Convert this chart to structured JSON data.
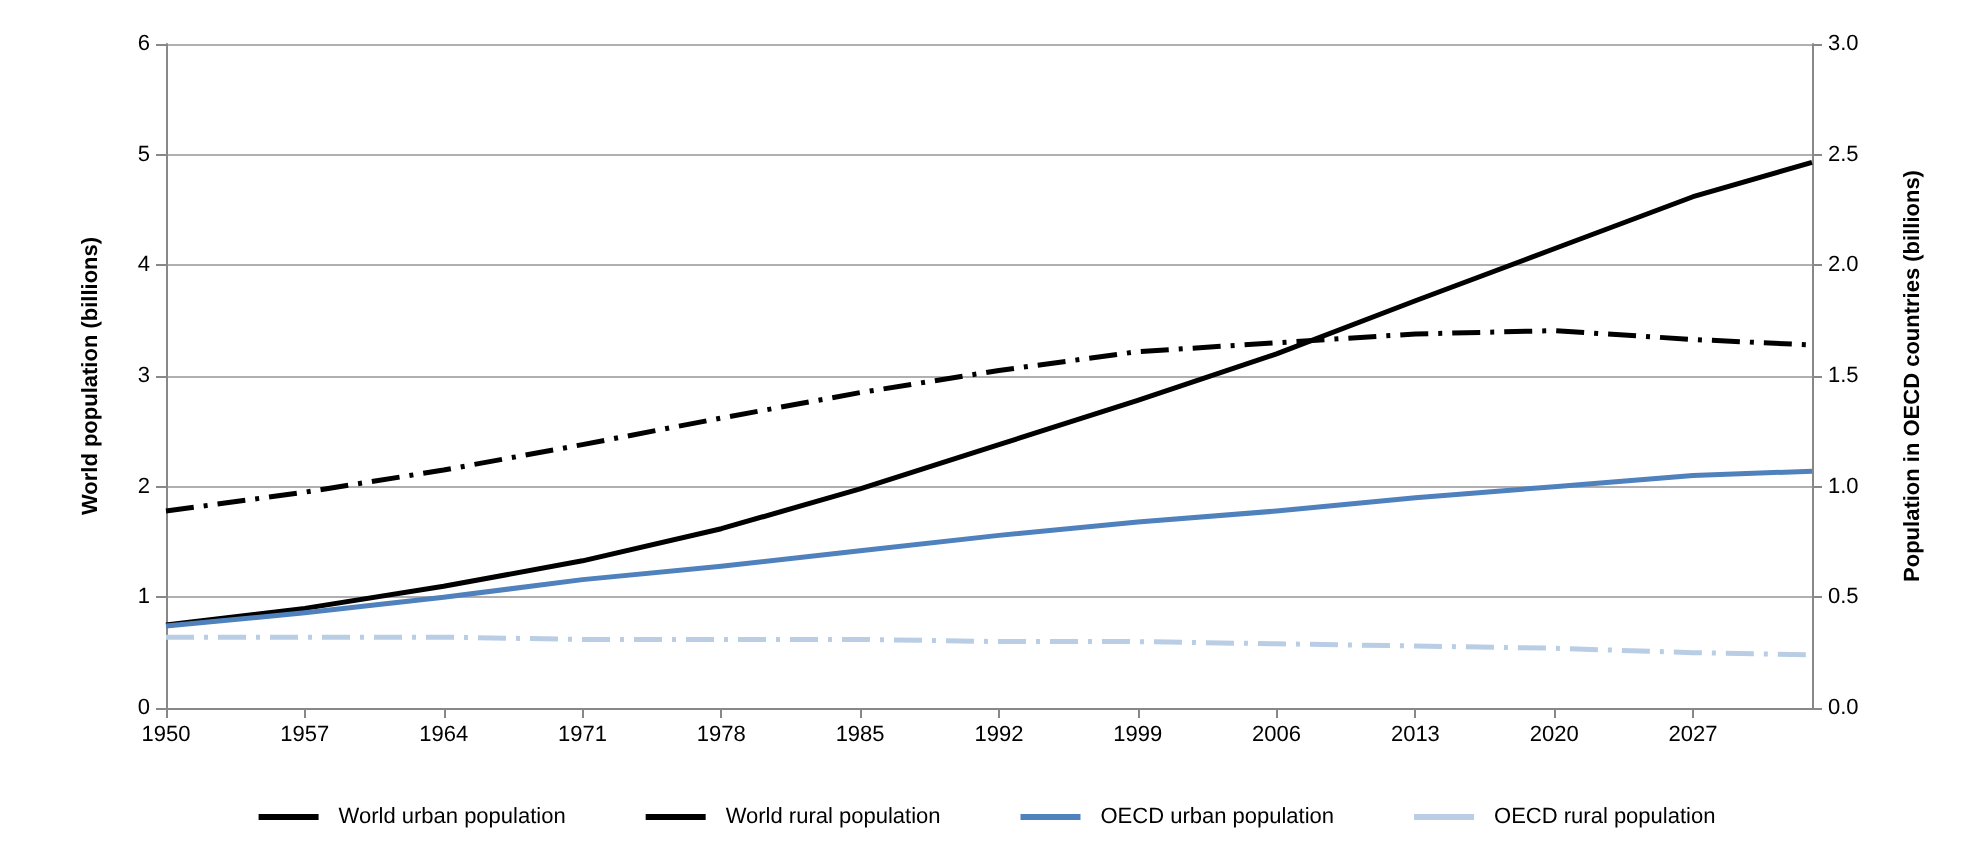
{
  "chart_data": {
    "type": "line",
    "ylabel": "World population (billions)",
    "y2label": "Population in OECD countries (billions)",
    "xlim": [
      1950,
      2033
    ],
    "xticks": [
      1950,
      1957,
      1964,
      1971,
      1978,
      1985,
      1992,
      1999,
      2006,
      2013,
      2020,
      2027
    ],
    "ylim": [
      0,
      6
    ],
    "yticks": [
      0,
      1,
      2,
      3,
      4,
      5,
      6
    ],
    "y2lim": [
      0,
      3
    ],
    "y2ticks": [
      {
        "value": 0,
        "label": "0.0"
      },
      {
        "value": 0.5,
        "label": "0.5"
      },
      {
        "value": 1,
        "label": "1.0"
      },
      {
        "value": 1.5,
        "label": "1.5"
      },
      {
        "value": 2,
        "label": "2.0"
      },
      {
        "value": 2.5,
        "label": "2.5"
      },
      {
        "value": 3,
        "label": "3.0"
      }
    ],
    "grid": "y",
    "legend": "bottom",
    "marker": "none",
    "x": [
      1950,
      1957,
      1964,
      1971,
      1978,
      1985,
      1992,
      1999,
      2006,
      2013,
      2020,
      2027,
      2033
    ],
    "series": [
      {
        "name": "World urban population",
        "color": "#000000",
        "line_style": "solid",
        "values": [
          0.75,
          0.9,
          1.1,
          1.33,
          1.62,
          1.98,
          2.38,
          2.78,
          3.2,
          3.68,
          4.15,
          4.62,
          4.93
        ]
      },
      {
        "name": "World rural population",
        "color": "#000000",
        "line_style": "dashed",
        "values": [
          1.78,
          1.95,
          2.15,
          2.38,
          2.62,
          2.85,
          3.05,
          3.22,
          3.3,
          3.38,
          3.41,
          3.33,
          3.28
        ]
      },
      {
        "name": "OECD urban population",
        "color": "#4f81bd",
        "line_style": "solid",
        "axis": "y2",
        "values": [
          0.37,
          0.43,
          0.5,
          0.58,
          0.64,
          0.71,
          0.78,
          0.84,
          0.89,
          0.95,
          1.0,
          1.05,
          1.07
        ]
      },
      {
        "name": "OECD rural population",
        "color": "#b9cde5",
        "line_style": "dashed",
        "axis": "y2",
        "values": [
          0.32,
          0.32,
          0.32,
          0.31,
          0.31,
          0.31,
          0.3,
          0.3,
          0.29,
          0.28,
          0.27,
          0.25,
          0.24
        ]
      }
    ]
  }
}
